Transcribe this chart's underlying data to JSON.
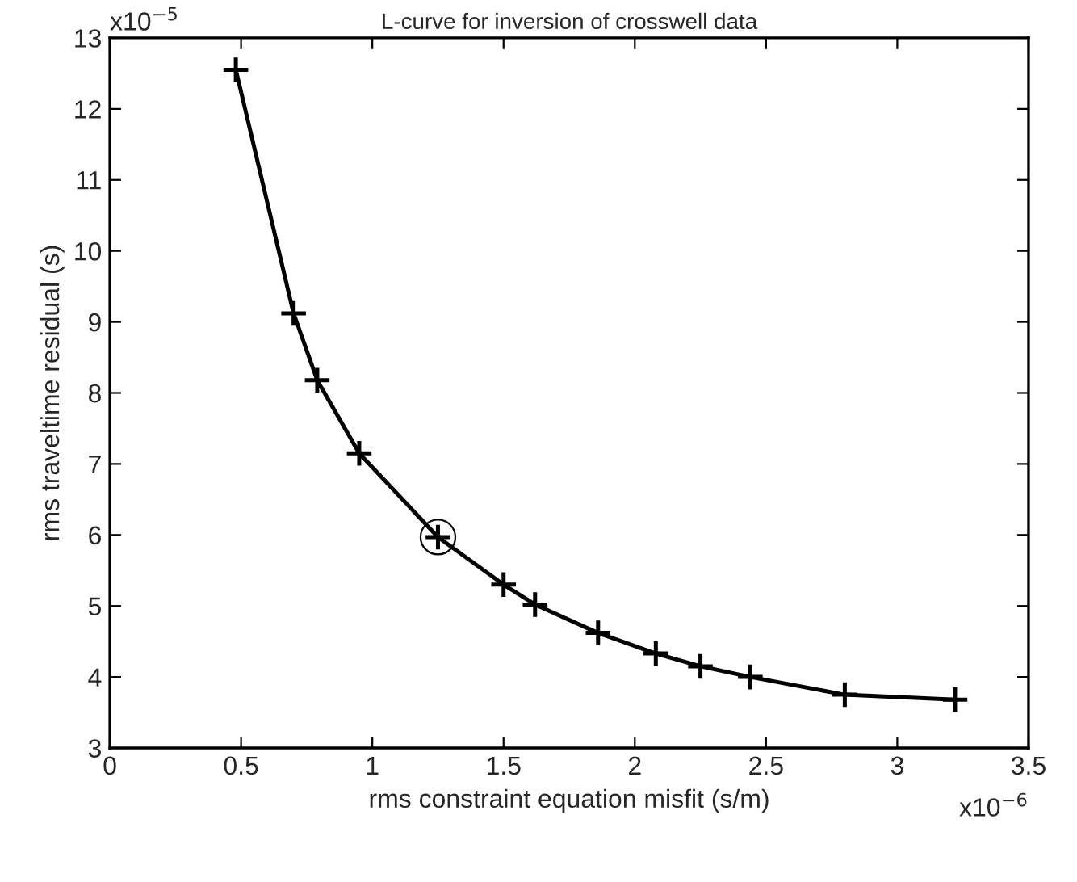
{
  "chart_data": {
    "type": "line",
    "title": "L-curve for inversion of crosswell data",
    "xlabel": "rms constraint equation misfit (s/m)",
    "ylabel": "rms traveltime residual (s)",
    "annotations": [
      "x10$^{−5}$",
      "x10$^{−6}$"
    ],
    "series": [
      {
        "color": "#000000",
        "marker": "cross",
        "line_style": "solid",
        "x": [
          0.48,
          0.7,
          0.79,
          0.95,
          1.25,
          1.5,
          1.62,
          1.86,
          2.08,
          2.25,
          2.44,
          2.8,
          3.22
        ],
        "values": [
          12.55,
          9.12,
          8.18,
          7.15,
          5.97,
          5.3,
          5.02,
          4.62,
          4.33,
          4.15,
          4.0,
          3.75,
          3.68
        ]
      },
      {
        "type": "scatter",
        "color": "#000000",
        "x": [
          1.25
        ],
        "values": [
          5.97
        ]
      }
    ],
    "xlim": [
      0,
      3.5
    ],
    "ylim": [
      3,
      13
    ],
    "xticks": [
      {
        "value": 0,
        "label": "0"
      },
      0.5,
      {
        "value": 1,
        "label": "1"
      },
      1.5,
      {
        "value": 2,
        "label": "2"
      },
      2.5,
      {
        "value": 3,
        "label": "3"
      },
      3.5
    ],
    "yticks": [
      3,
      4,
      5,
      6,
      7,
      8,
      9,
      10,
      11,
      12,
      13
    ],
    "grid": false,
    "legend": false
  }
}
